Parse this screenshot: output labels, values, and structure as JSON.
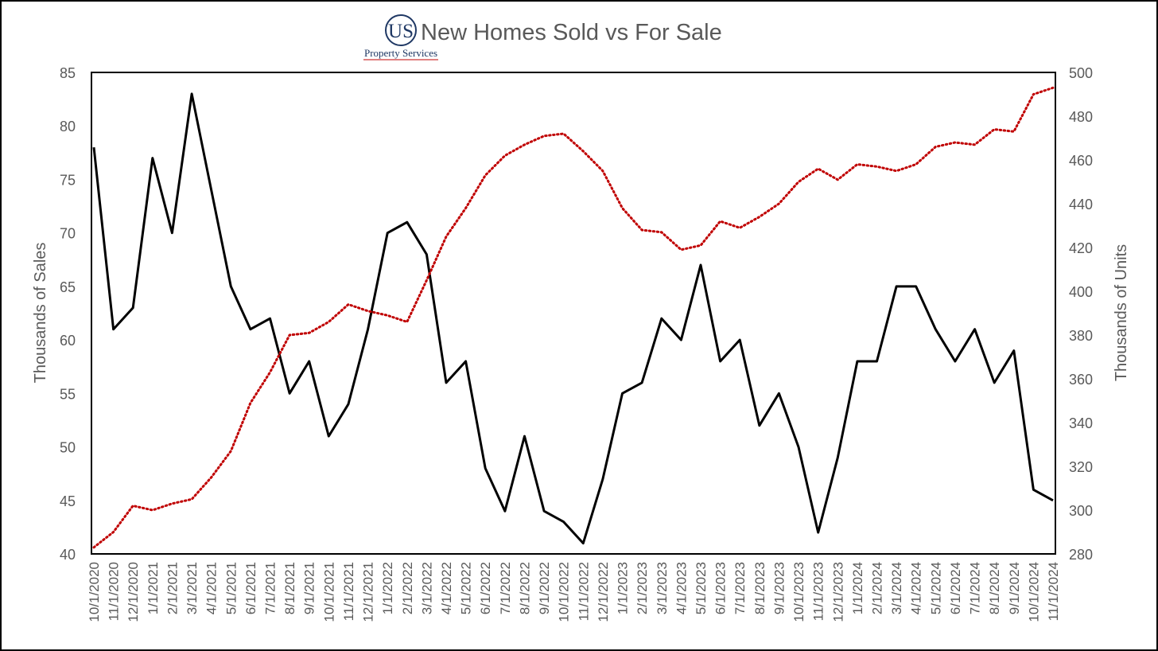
{
  "logo": {
    "mark": "US",
    "subtitle": "Property Services",
    "accent": "#1f3864"
  },
  "chart_data": {
    "type": "line",
    "title": "New Homes Sold vs For Sale",
    "ylabel": "Thousands of Sales",
    "y2label": "Thousands of Units",
    "ylim": [
      40,
      85
    ],
    "yticks": [
      40,
      45,
      50,
      55,
      60,
      65,
      70,
      75,
      80,
      85
    ],
    "y2lim": [
      280,
      500
    ],
    "y2ticks": [
      280,
      300,
      320,
      340,
      360,
      380,
      400,
      420,
      440,
      460,
      480,
      500
    ],
    "grid": false,
    "legend": "none",
    "x": [
      "10/1/2020",
      "11/1/2020",
      "12/1/2020",
      "1/1/2021",
      "2/1/2021",
      "3/1/2021",
      "4/1/2021",
      "5/1/2021",
      "6/1/2021",
      "7/1/2021",
      "8/1/2021",
      "9/1/2021",
      "10/1/2021",
      "11/1/2021",
      "12/1/2021",
      "1/1/2022",
      "2/1/2022",
      "3/1/2022",
      "4/1/2022",
      "5/1/2022",
      "6/1/2022",
      "7/1/2022",
      "8/1/2022",
      "9/1/2022",
      "10/1/2022",
      "11/1/2022",
      "12/1/2022",
      "1/1/2023",
      "2/1/2023",
      "3/1/2023",
      "4/1/2023",
      "5/1/2023",
      "6/1/2023",
      "7/1/2023",
      "8/1/2023",
      "9/1/2023",
      "10/1/2023",
      "11/1/2023",
      "12/1/2023",
      "1/1/2024",
      "2/1/2024",
      "3/1/2024",
      "4/1/2024",
      "5/1/2024",
      "6/1/2024",
      "7/1/2024",
      "8/1/2024",
      "9/1/2024",
      "10/1/2024",
      "11/1/2024"
    ],
    "series": [
      {
        "axis": "left",
        "color": "#000000",
        "style": "solid",
        "values": [
          78,
          61,
          63,
          77,
          70,
          83,
          74,
          65,
          61,
          62,
          55,
          58,
          51,
          54,
          61,
          70,
          71,
          68,
          56,
          58,
          48,
          44,
          51,
          44,
          43,
          41,
          47,
          55,
          56,
          62,
          60,
          67,
          58,
          60,
          52,
          55,
          50,
          42,
          49,
          58,
          58,
          65,
          65,
          61,
          58,
          61,
          56,
          59,
          46,
          45
        ]
      },
      {
        "axis": "right",
        "color": "#c00000",
        "style": "dotted",
        "values": [
          283,
          290,
          302,
          300,
          303,
          305,
          315,
          327,
          349,
          363,
          380,
          381,
          386,
          394,
          391,
          389,
          386,
          405,
          425,
          438,
          453,
          462,
          467,
          471,
          472,
          464,
          455,
          438,
          428,
          427,
          419,
          421,
          432,
          429,
          434,
          440,
          450,
          456,
          451,
          458,
          457,
          455,
          458,
          466,
          468,
          467,
          474,
          473,
          490,
          493
        ]
      }
    ]
  }
}
